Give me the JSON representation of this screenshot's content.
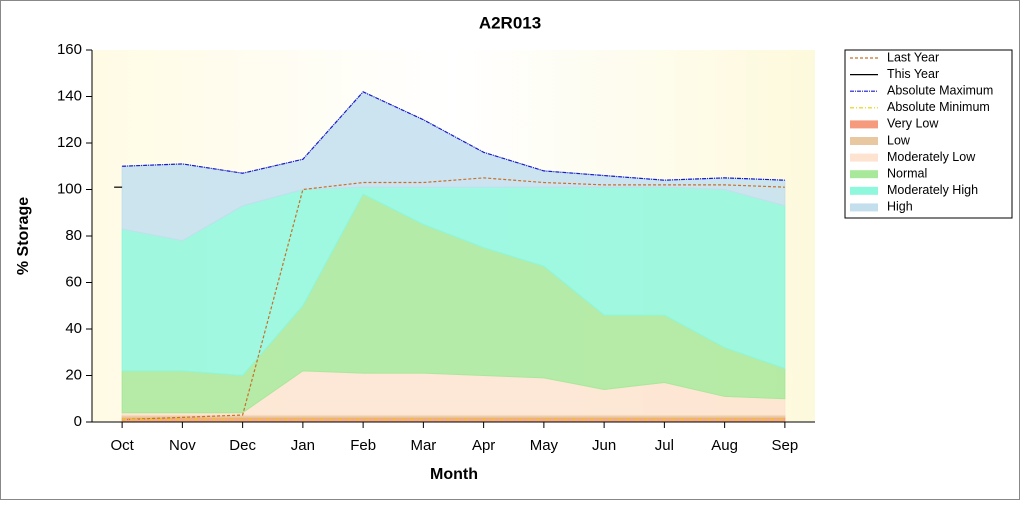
{
  "chart_data": {
    "type": "stacked-band-line",
    "title": "A2R013",
    "x_label": "Month",
    "y_label": "% Storage",
    "categories": [
      "Oct",
      "Nov",
      "Dec",
      "Jan",
      "Feb",
      "Mar",
      "Apr",
      "May",
      "Jun",
      "Jul",
      "Aug",
      "Sep"
    ],
    "ylim": [
      0,
      160
    ],
    "yticks": [
      0,
      20,
      40,
      60,
      80,
      100,
      120,
      140,
      160
    ],
    "series": [
      {
        "name": "Last Year",
        "kind": "line",
        "dash": "3,2",
        "color": "#c8702a",
        "values": [
          1,
          2,
          3,
          100,
          103,
          103,
          105,
          103,
          102,
          102,
          102,
          101
        ]
      },
      {
        "name": "This Year",
        "kind": "line",
        "dash": "none",
        "color": "#000000",
        "values": [
          101,
          null,
          null,
          null,
          null,
          null,
          null,
          null,
          null,
          null,
          null,
          null
        ]
      },
      {
        "name": "Absolute Maximum",
        "kind": "line",
        "dash": "4,1,1,1",
        "color": "#1a1acc",
        "values": [
          110,
          111,
          107,
          113,
          142,
          130,
          116,
          108,
          106,
          104,
          105,
          104
        ]
      },
      {
        "name": "Absolute Minimum",
        "kind": "line",
        "dash": "4,2,1,2",
        "color": "#e6d200",
        "values": [
          1,
          1,
          1,
          1,
          1,
          1,
          1,
          1,
          1,
          1,
          1,
          1
        ]
      },
      {
        "name": "Very Low",
        "kind": "band",
        "color": "#f59a7c",
        "values": [
          2,
          2,
          2,
          2,
          2,
          2,
          2,
          2,
          2,
          2,
          2,
          2
        ]
      },
      {
        "name": "Low",
        "kind": "band",
        "color": "#e8c8a0",
        "values": [
          1,
          1,
          1,
          1,
          1,
          1,
          1,
          1,
          1,
          1,
          1,
          1
        ]
      },
      {
        "name": "Moderately Low",
        "kind": "band",
        "color": "#fde3d0",
        "values": [
          1,
          1,
          1,
          19,
          18,
          18,
          17,
          16,
          11,
          14,
          8,
          7
        ]
      },
      {
        "name": "Normal",
        "kind": "band",
        "color": "#a8e89a",
        "values": [
          18,
          18,
          16,
          28,
          77,
          64,
          55,
          48,
          32,
          29,
          21,
          13
        ]
      },
      {
        "name": "Moderately High",
        "kind": "band",
        "color": "#8ef7dc",
        "values": [
          61,
          56,
          73,
          50,
          3,
          16,
          26,
          34,
          55,
          55,
          68,
          70
        ]
      },
      {
        "name": "High",
        "kind": "band",
        "color": "#c3dfee",
        "values": [
          27,
          33,
          14,
          13,
          41,
          29,
          15,
          7,
          5,
          3,
          5,
          11
        ]
      }
    ]
  }
}
